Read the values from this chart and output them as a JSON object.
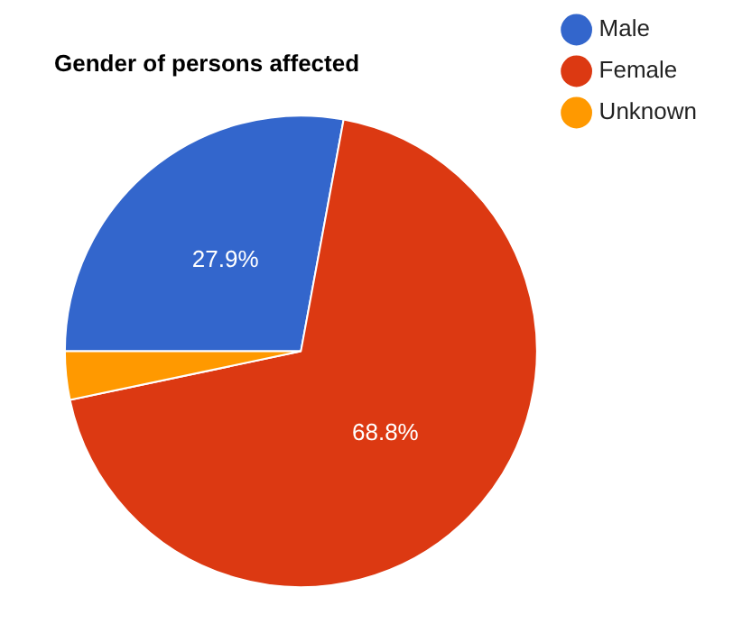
{
  "chart_data": {
    "type": "pie",
    "title": "Gender of persons affected",
    "categories": [
      "Male",
      "Female",
      "Unknown"
    ],
    "values": [
      27.9,
      68.8,
      3.3
    ],
    "colors": [
      "#3366cc",
      "#dc3912",
      "#ff9900"
    ],
    "value_labels": [
      "27.9%",
      "68.8%",
      null
    ],
    "legend": "top right"
  }
}
